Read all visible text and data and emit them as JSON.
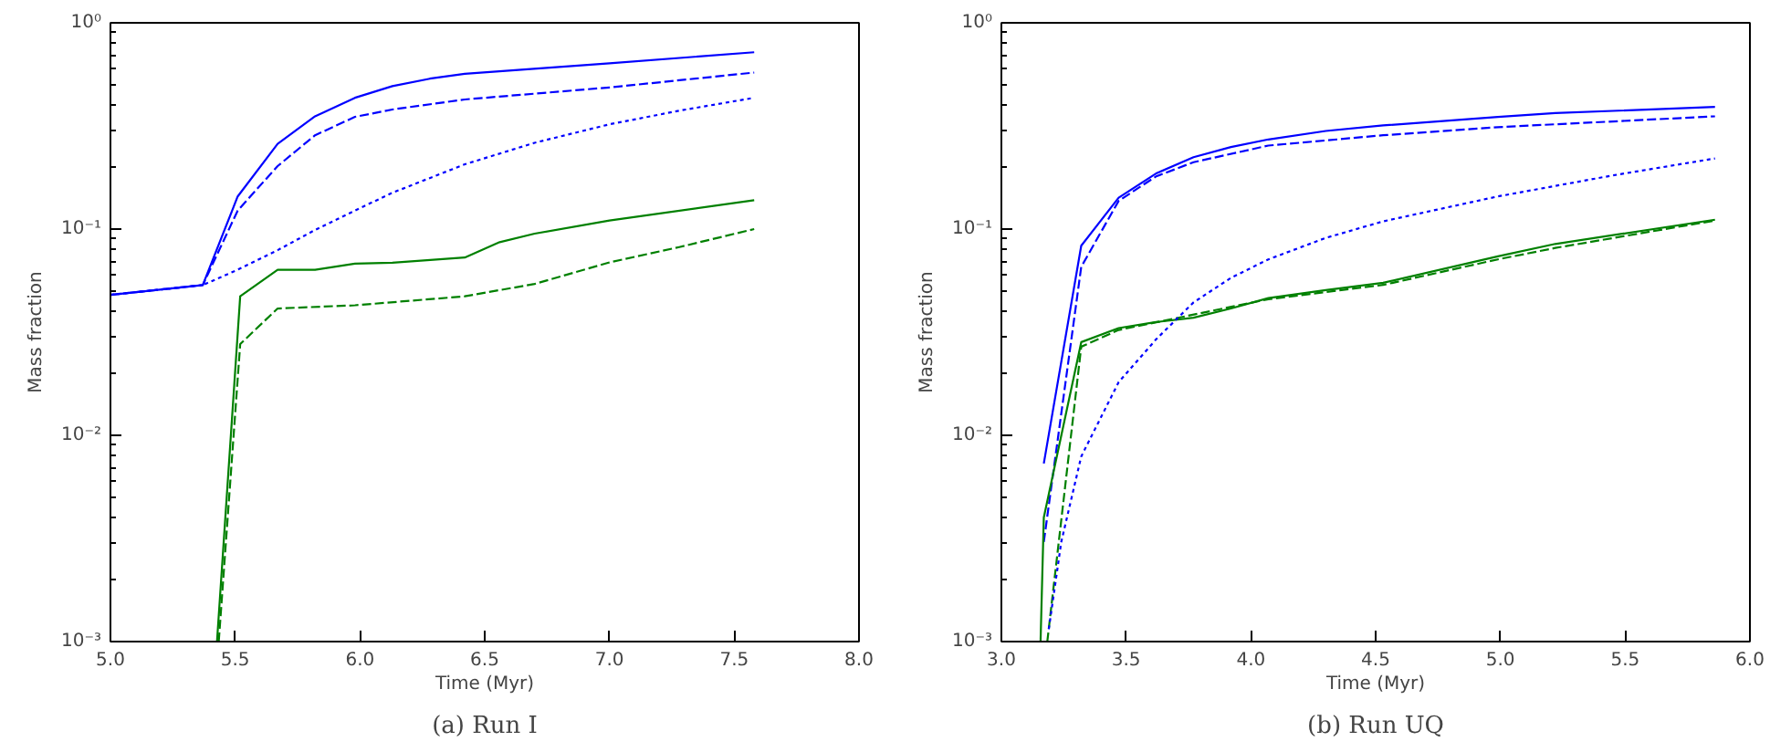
{
  "chart_data": [
    {
      "type": "line",
      "title": "(a) Run I",
      "xlabel": "Time (Myr)",
      "ylabel": "Mass fraction",
      "log": "y",
      "grid": false,
      "marker": "none",
      "xlim": [
        5.0,
        8.0
      ],
      "ylim": [
        0.001,
        1
      ],
      "xticks": [
        {
          "value": 5.0,
          "label": "5.0"
        },
        {
          "value": 5.5,
          "label": "5.5"
        },
        {
          "value": 6.0,
          "label": "6.0"
        },
        {
          "value": 6.5,
          "label": "6.5"
        },
        {
          "value": 7.0,
          "label": "7.0"
        },
        {
          "value": 7.5,
          "label": "7.5"
        },
        {
          "value": 8.0,
          "label": "8.0"
        }
      ],
      "yticks": [
        {
          "value": 0.001,
          "label": "10⁻³"
        },
        {
          "value": 0.01,
          "label": "10⁻²"
        },
        {
          "value": 0.1,
          "label": "10⁻¹"
        },
        {
          "value": 1,
          "label": "10⁰"
        }
      ],
      "series": [
        {
          "color": "#0000ff",
          "line_style": "solid",
          "x": [
            5.0,
            5.37,
            5.51,
            5.67,
            5.82,
            5.98,
            6.13,
            6.28,
            6.42,
            7.0,
            7.58
          ],
          "values": [
            0.048,
            0.0535,
            0.144,
            0.259,
            0.352,
            0.433,
            0.493,
            0.536,
            0.566,
            0.636,
            0.72
          ]
        },
        {
          "color": "#0000ff",
          "line_style": "dashed",
          "x": [
            5.0,
            5.37,
            5.51,
            5.67,
            5.82,
            5.98,
            6.13,
            6.42,
            7.0,
            7.58
          ],
          "values": [
            0.048,
            0.0535,
            0.123,
            0.202,
            0.285,
            0.35,
            0.38,
            0.425,
            0.486,
            0.574
          ]
        },
        {
          "color": "#0000ff",
          "line_style": "dotted",
          "x": [
            5.0,
            5.37,
            5.51,
            5.67,
            5.82,
            5.98,
            6.13,
            6.42,
            6.7,
            7.0,
            7.28,
            7.58
          ],
          "values": [
            0.048,
            0.0535,
            0.0635,
            0.079,
            0.099,
            0.123,
            0.15,
            0.206,
            0.262,
            0.322,
            0.375,
            0.433
          ]
        },
        {
          "color": "#008000",
          "line_style": "solid",
          "x": [
            5.427,
            5.52,
            5.67,
            5.82,
            5.98,
            6.13,
            6.42,
            6.56,
            6.7,
            7.0,
            7.58
          ],
          "values": [
            0.001,
            0.0472,
            0.0635,
            0.0635,
            0.068,
            0.0687,
            0.0728,
            0.0864,
            0.095,
            0.11,
            0.138
          ]
        },
        {
          "color": "#008000",
          "line_style": "dashed",
          "x": [
            5.434,
            5.52,
            5.67,
            5.98,
            6.42,
            6.7,
            7.0,
            7.28,
            7.58
          ],
          "values": [
            0.001,
            0.0277,
            0.0412,
            0.0427,
            0.0472,
            0.0542,
            0.0689,
            0.0818,
            0.1
          ]
        }
      ]
    },
    {
      "type": "line",
      "title": "(b) Run UQ",
      "xlabel": "Time (Myr)",
      "ylabel": "Mass fraction",
      "log": "y",
      "grid": false,
      "marker": "none",
      "xlim": [
        3.0,
        6.0
      ],
      "ylim": [
        0.001,
        1
      ],
      "xticks": [
        {
          "value": 3.0,
          "label": "3.0"
        },
        {
          "value": 3.5,
          "label": "3.5"
        },
        {
          "value": 4.0,
          "label": "4.0"
        },
        {
          "value": 4.5,
          "label": "4.5"
        },
        {
          "value": 5.0,
          "label": "5.0"
        },
        {
          "value": 5.5,
          "label": "5.5"
        },
        {
          "value": 6.0,
          "label": "6.0"
        }
      ],
      "yticks": [
        {
          "value": 0.001,
          "label": "10⁻³"
        },
        {
          "value": 0.01,
          "label": "10⁻²"
        },
        {
          "value": 0.1,
          "label": "10⁻¹"
        },
        {
          "value": 1,
          "label": "10⁰"
        }
      ],
      "series": [
        {
          "color": "#0000ff",
          "line_style": "solid",
          "x": [
            3.17,
            3.32,
            3.47,
            3.62,
            3.77,
            3.92,
            4.07,
            4.3,
            4.53,
            4.99,
            5.22,
            5.86
          ],
          "values": [
            0.0073,
            0.083,
            0.142,
            0.186,
            0.223,
            0.25,
            0.272,
            0.299,
            0.318,
            0.35,
            0.365,
            0.391
          ]
        },
        {
          "color": "#0000ff",
          "line_style": "dashed",
          "x": [
            3.17,
            3.32,
            3.47,
            3.62,
            3.77,
            4.07,
            4.53,
            4.99,
            5.86
          ],
          "values": [
            0.00304,
            0.0656,
            0.137,
            0.18,
            0.211,
            0.254,
            0.285,
            0.312,
            0.352
          ]
        },
        {
          "color": "#0000ff",
          "line_style": "dotted",
          "x": [
            3.19,
            3.24,
            3.32,
            3.47,
            3.62,
            3.77,
            3.92,
            4.07,
            4.3,
            4.53,
            4.99,
            5.45,
            5.86
          ],
          "values": [
            0.00115,
            0.00304,
            0.0079,
            0.0181,
            0.0292,
            0.0441,
            0.058,
            0.0713,
            0.0906,
            0.109,
            0.144,
            0.182,
            0.22
          ]
        },
        {
          "color": "#008000",
          "line_style": "solid",
          "x": [
            3.157,
            3.17,
            3.32,
            3.47,
            3.62,
            3.77,
            3.92,
            4.07,
            4.3,
            4.53,
            4.99,
            5.22,
            5.86
          ],
          "values": [
            0.001,
            0.004,
            0.0283,
            0.0331,
            0.0354,
            0.0372,
            0.0412,
            0.0463,
            0.0506,
            0.0549,
            0.0738,
            0.0847,
            0.111
          ]
        },
        {
          "color": "#008000",
          "line_style": "dashed",
          "x": [
            3.184,
            3.32,
            3.47,
            4.07,
            4.53,
            4.99,
            5.22,
            5.86
          ],
          "values": [
            0.001,
            0.0269,
            0.0324,
            0.0457,
            0.0536,
            0.0713,
            0.081,
            0.11
          ]
        }
      ]
    }
  ]
}
